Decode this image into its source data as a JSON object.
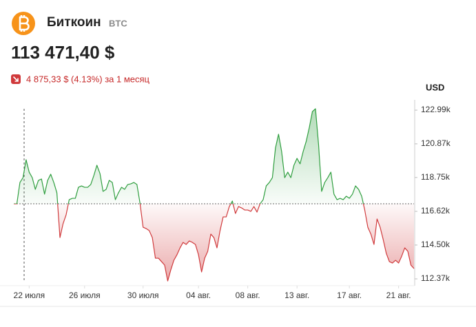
{
  "chart_data": {
    "type": "line",
    "title": "Биткоин",
    "ticker": "BTC",
    "price": "113 471,40 $",
    "change": "4 875,33 $ (4.13%) за 1 месяц",
    "y_label": "USD",
    "up_color": "#2e9e3e",
    "down_color": "#d0393b",
    "values": [
      117094,
      117094,
      118438,
      118742,
      119869,
      119088,
      118742,
      118005,
      118568,
      118655,
      117701,
      118568,
      118958,
      118438,
      117788,
      114970,
      115837,
      116401,
      117354,
      117441,
      117441,
      118135,
      118221,
      118135,
      118135,
      118308,
      118872,
      119522,
      119002,
      117875,
      118005,
      118568,
      118438,
      117354,
      117788,
      118135,
      118005,
      118308,
      118352,
      118438,
      118308,
      117137,
      115620,
      115534,
      115404,
      114970,
      113670,
      113670,
      113453,
      113236,
      112239,
      112933,
      113540,
      113886,
      114320,
      114667,
      114537,
      114753,
      114667,
      114537,
      113886,
      112803,
      113670,
      114103,
      115187,
      114970,
      114320,
      115404,
      116271,
      116271,
      116921,
      117268,
      116487,
      116921,
      116834,
      116704,
      116704,
      116618,
      116921,
      116574,
      117094,
      117354,
      118221,
      118438,
      118742,
      120606,
      121473,
      120389,
      118742,
      119088,
      118742,
      119522,
      119955,
      119609,
      120389,
      121039,
      121906,
      122903,
      123077,
      120822,
      117875,
      118438,
      118742,
      119088,
      117701,
      117354,
      117441,
      117354,
      117571,
      117441,
      117701,
      118221,
      118005,
      117571,
      116704,
      115620,
      115187,
      114537,
      116141,
      115620,
      114840,
      113973,
      113453,
      113366,
      113540,
      113366,
      113800,
      114320,
      114103,
      113236,
      113019
    ],
    "xticks": [
      {
        "value": 5,
        "label": "22 июля"
      },
      {
        "value": 23,
        "label": "26 июля"
      },
      {
        "value": 42,
        "label": "30 июля"
      },
      {
        "value": 60,
        "label": "04 авг."
      },
      {
        "value": 76,
        "label": "08 авг."
      },
      {
        "value": 92,
        "label": "13 авг."
      },
      {
        "value": 109,
        "label": "17 авг."
      },
      {
        "value": 125,
        "label": "21 авг."
      }
    ],
    "ylim": [
      111940,
      123640
    ],
    "yticks": [
      {
        "value": 122990,
        "label": "122.99k"
      },
      {
        "value": 120870,
        "label": "120.87k"
      },
      {
        "value": 118750,
        "label": "118.75k"
      },
      {
        "value": 116620,
        "label": "116.62k"
      },
      {
        "value": 114500,
        "label": "114.50k"
      },
      {
        "value": 112370,
        "label": "112.37k"
      }
    ]
  }
}
